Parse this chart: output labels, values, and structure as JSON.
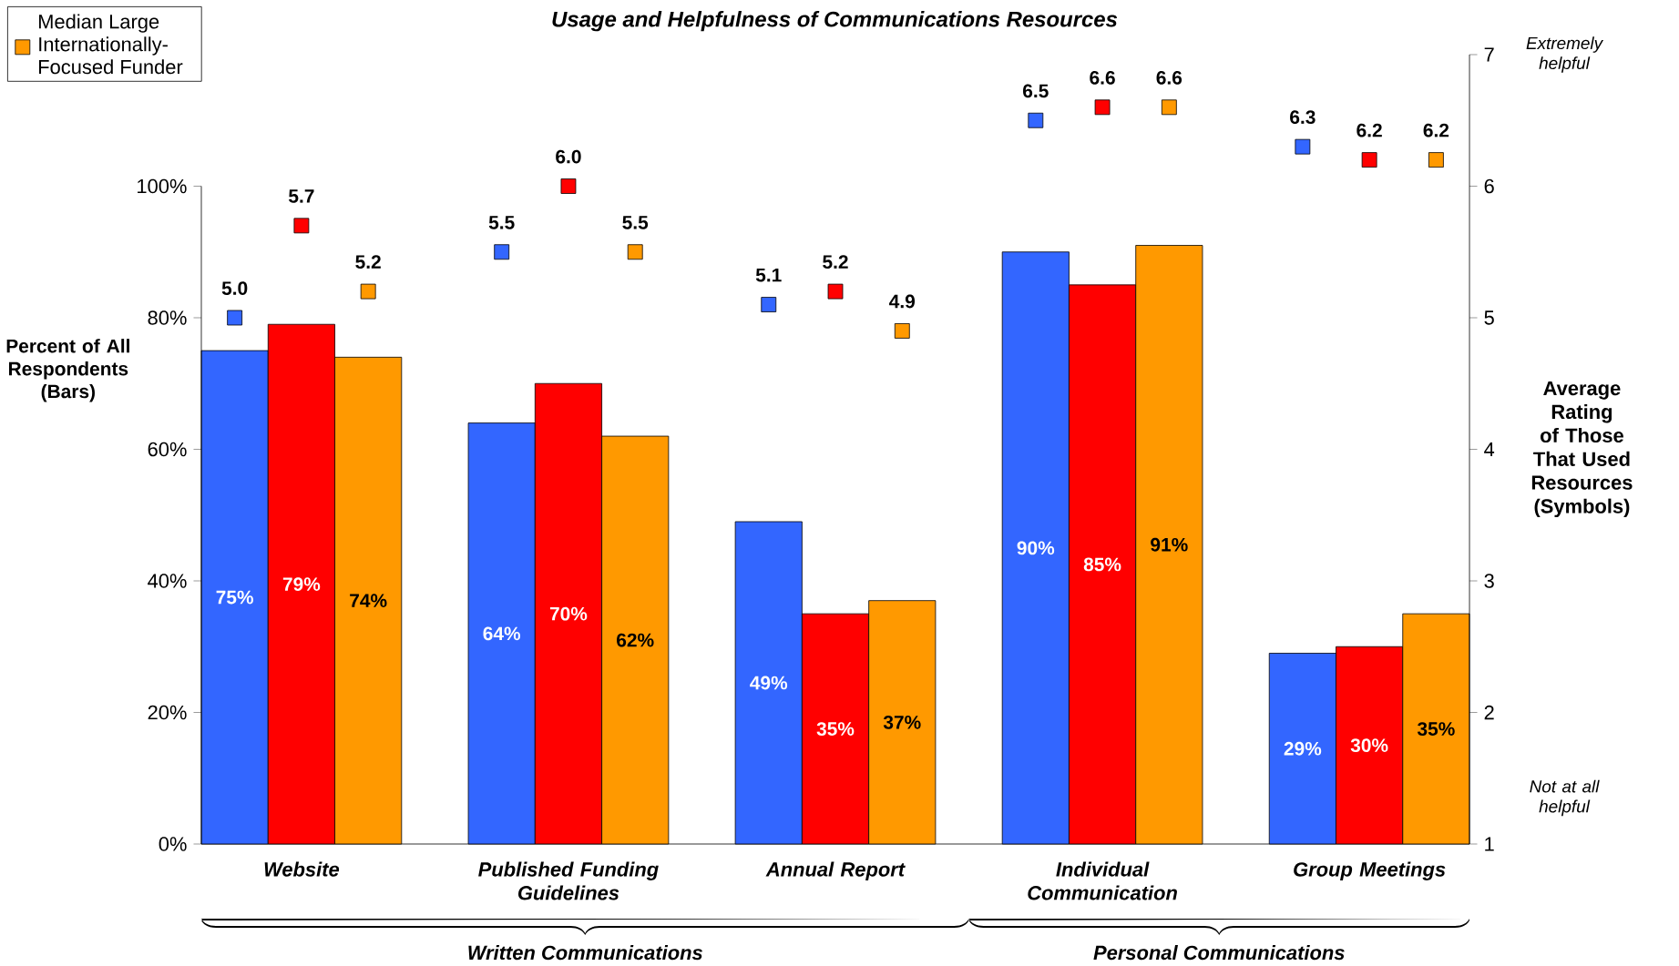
{
  "chart_data": {
    "type": "bar",
    "title": "Usage and Helpfulness of Communications Resources",
    "ylabel": "Percent of All Respondents (Bars)",
    "y2label": "Average Rating of Those That Used Resources (Symbols)",
    "categories": [
      "Website",
      "Published Funding Guidelines",
      "Annual Report",
      "Individual Communication",
      "Group Meetings"
    ],
    "series": [
      {
        "type": "bar",
        "color": "#3366ff",
        "values": [
          75,
          64,
          49,
          90,
          29
        ],
        "value_labels": [
          "75%",
          "64%",
          "49%",
          "90%",
          "29%"
        ]
      },
      {
        "type": "bar",
        "color": "#ff0000",
        "values": [
          79,
          70,
          35,
          85,
          30
        ],
        "value_labels": [
          "79%",
          "70%",
          "35%",
          "85%",
          "30%"
        ]
      },
      {
        "type": "bar",
        "color": "#ff9900",
        "values": [
          74,
          62,
          37,
          91,
          35
        ],
        "value_labels": [
          "74%",
          "62%",
          "37%",
          "91%",
          "35%"
        ]
      },
      {
        "type": "scatter",
        "axis": "y2",
        "marker": "square",
        "color": "#3366ff",
        "values": [
          5.0,
          5.5,
          5.1,
          6.5,
          6.3
        ],
        "value_labels": [
          "5.0",
          "5.5",
          "5.1",
          "6.5",
          "6.3"
        ]
      },
      {
        "type": "scatter",
        "axis": "y2",
        "marker": "square",
        "color": "#ff0000",
        "values": [
          5.7,
          6.0,
          5.2,
          6.6,
          6.2
        ],
        "value_labels": [
          "5.7",
          "6.0",
          "5.2",
          "6.6",
          "6.2"
        ]
      },
      {
        "type": "scatter",
        "axis": "y2",
        "marker": "square",
        "name": "Median Large Internationally-Focused Funder",
        "color": "#ff9900",
        "values": [
          5.2,
          5.5,
          4.9,
          6.6,
          6.2
        ],
        "value_labels": [
          "5.2",
          "5.5",
          "4.9",
          "6.6",
          "6.2"
        ]
      }
    ],
    "ylim": [
      0,
      120
    ],
    "yticks": [
      {
        "value": 0,
        "label": "0%"
      },
      {
        "value": 20,
        "label": "20%"
      },
      {
        "value": 40,
        "label": "40%"
      },
      {
        "value": 60,
        "label": "60%"
      },
      {
        "value": 80,
        "label": "80%"
      },
      {
        "value": 100,
        "label": "100%"
      }
    ],
    "y2lim": [
      1,
      7
    ],
    "y2ticks": [
      1,
      2,
      3,
      4,
      5,
      6,
      7
    ],
    "legend": "top left",
    "annotations": [
      "Written Communications",
      "Personal Communications",
      "Extremely helpful",
      "Not at all helpful"
    ]
  }
}
